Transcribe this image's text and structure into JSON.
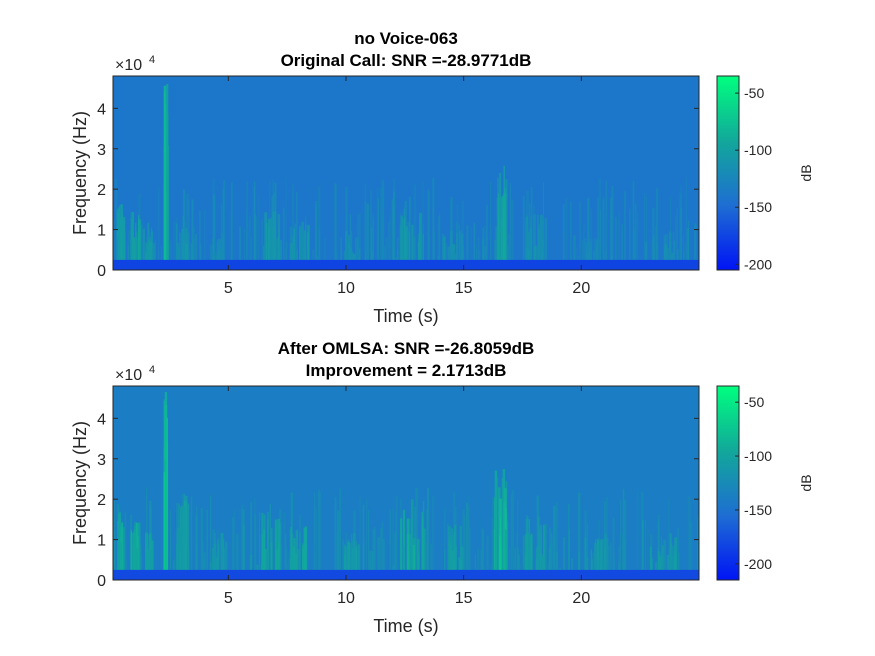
{
  "chart_data": [
    {
      "type": "heatmap",
      "title": [
        "no Voice-063",
        "Original Call: SNR =-28.9771dB"
      ],
      "xlabel": "Time (s)",
      "ylabel": "Frequency (Hz)",
      "y_exponent_label": "×10",
      "y_exponent_power": "4",
      "xlim": [
        0.1,
        25
      ],
      "ylim": [
        0,
        48000
      ],
      "x_ticks": [
        5,
        10,
        15,
        20
      ],
      "x_tick_labels": [
        "5",
        "10",
        "15",
        "20"
      ],
      "y_ticks": [
        0,
        10000,
        20000,
        30000,
        40000
      ],
      "y_tick_labels": [
        "0",
        "1",
        "2",
        "3",
        "4"
      ],
      "colorbar": {
        "label": "dB",
        "clim": [
          -205,
          -35
        ],
        "ticks": [
          -50,
          -100,
          -150,
          -200
        ],
        "tick_labels": [
          "-50",
          "-100",
          "-150",
          "-200"
        ],
        "colors": [
          "#0014f5",
          "#1e6ed2",
          "#12a89a",
          "#00ff7f"
        ]
      },
      "background_level_db": -140,
      "low_band": {
        "ymax": 2500,
        "level_db": -175
      },
      "energy_events": [
        {
          "t": 0.4,
          "w": 0.25,
          "f_top": 17000,
          "intensity": 0.6
        },
        {
          "t": 1.0,
          "w": 0.35,
          "f_top": 15000,
          "intensity": 0.7
        },
        {
          "t": 1.6,
          "w": 0.3,
          "f_top": 12000,
          "intensity": 0.5
        },
        {
          "t": 2.3,
          "w": 0.12,
          "f_top": 48000,
          "intensity": 0.85
        },
        {
          "t": 3.0,
          "w": 0.5,
          "f_top": 14000,
          "intensity": 0.45
        },
        {
          "t": 4.5,
          "w": 0.6,
          "f_top": 9000,
          "intensity": 0.35
        },
        {
          "t": 6.8,
          "w": 0.8,
          "f_top": 15000,
          "intensity": 0.5
        },
        {
          "t": 8.0,
          "w": 0.8,
          "f_top": 12000,
          "intensity": 0.5
        },
        {
          "t": 10.2,
          "w": 0.6,
          "f_top": 10000,
          "intensity": 0.4
        },
        {
          "t": 12.8,
          "w": 1.0,
          "f_top": 16000,
          "intensity": 0.55
        },
        {
          "t": 14.5,
          "w": 0.8,
          "f_top": 11000,
          "intensity": 0.45
        },
        {
          "t": 16.5,
          "w": 0.6,
          "f_top": 26000,
          "intensity": 0.7
        },
        {
          "t": 18.0,
          "w": 0.8,
          "f_top": 14000,
          "intensity": 0.45
        },
        {
          "t": 20.5,
          "w": 1.0,
          "f_top": 8000,
          "intensity": 0.3
        },
        {
          "t": 23.5,
          "w": 1.2,
          "f_top": 9000,
          "intensity": 0.35
        }
      ]
    },
    {
      "type": "heatmap",
      "title": [
        "After OMLSA: SNR =-26.8059dB",
        "Improvement = 2.1713dB"
      ],
      "xlabel": "Time (s)",
      "ylabel": "Frequency (Hz)",
      "y_exponent_label": "×10",
      "y_exponent_power": "4",
      "xlim": [
        0.1,
        25
      ],
      "ylim": [
        0,
        48000
      ],
      "x_ticks": [
        5,
        10,
        15,
        20
      ],
      "x_tick_labels": [
        "5",
        "10",
        "15",
        "20"
      ],
      "y_ticks": [
        0,
        10000,
        20000,
        30000,
        40000
      ],
      "y_tick_labels": [
        "0",
        "1",
        "2",
        "3",
        "4"
      ],
      "colorbar": {
        "label": "dB",
        "clim": [
          -215,
          -35
        ],
        "ticks": [
          -50,
          -100,
          -150,
          -200
        ],
        "tick_labels": [
          "-50",
          "-100",
          "-150",
          "-200"
        ],
        "colors": [
          "#0014f5",
          "#1e6ed2",
          "#12a89a",
          "#00ff7f"
        ]
      },
      "background_level_db": -140,
      "low_band": {
        "ymax": 2500,
        "level_db": -180
      },
      "energy_events": [
        {
          "t": 0.4,
          "w": 0.25,
          "f_top": 17000,
          "intensity": 0.65
        },
        {
          "t": 1.0,
          "w": 0.35,
          "f_top": 15000,
          "intensity": 0.75
        },
        {
          "t": 1.6,
          "w": 0.3,
          "f_top": 12000,
          "intensity": 0.55
        },
        {
          "t": 2.3,
          "w": 0.12,
          "f_top": 48000,
          "intensity": 0.9
        },
        {
          "t": 3.0,
          "w": 0.5,
          "f_top": 22000,
          "intensity": 0.55
        },
        {
          "t": 4.5,
          "w": 0.6,
          "f_top": 12000,
          "intensity": 0.45
        },
        {
          "t": 6.8,
          "w": 0.8,
          "f_top": 18000,
          "intensity": 0.6
        },
        {
          "t": 8.0,
          "w": 0.8,
          "f_top": 14000,
          "intensity": 0.6
        },
        {
          "t": 10.2,
          "w": 0.6,
          "f_top": 12000,
          "intensity": 0.5
        },
        {
          "t": 12.8,
          "w": 1.0,
          "f_top": 20000,
          "intensity": 0.65
        },
        {
          "t": 14.5,
          "w": 0.8,
          "f_top": 14000,
          "intensity": 0.55
        },
        {
          "t": 16.5,
          "w": 0.6,
          "f_top": 28000,
          "intensity": 0.8
        },
        {
          "t": 18.0,
          "w": 0.8,
          "f_top": 16000,
          "intensity": 0.55
        },
        {
          "t": 20.5,
          "w": 1.0,
          "f_top": 12000,
          "intensity": 0.45
        },
        {
          "t": 23.5,
          "w": 1.2,
          "f_top": 13000,
          "intensity": 0.5
        }
      ]
    }
  ]
}
